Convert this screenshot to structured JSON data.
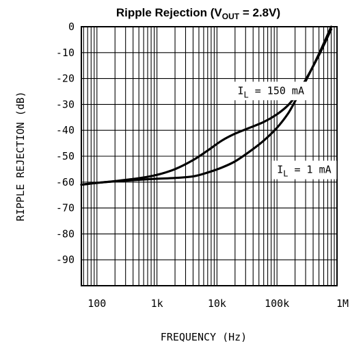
{
  "chart_data": {
    "type": "line",
    "title": {
      "main": "Ripple Rejection (V",
      "subscript": "OUT",
      "suffix": " = 2.8V)"
    },
    "xlabel": "FREQUENCY (Hz)",
    "ylabel": "RIPPLE REJECTION (dB)",
    "x_scale": "log",
    "xlim": [
      55,
      1000000
    ],
    "ylim": [
      -100,
      0
    ],
    "x_ticks": [
      {
        "value": 100,
        "label": "100"
      },
      {
        "value": 1000,
        "label": "1k"
      },
      {
        "value": 10000,
        "label": "10k"
      },
      {
        "value": 100000,
        "label": "100k"
      },
      {
        "value": 1000000,
        "label": "1M"
      }
    ],
    "y_ticks": [
      {
        "value": 0,
        "label": "0"
      },
      {
        "value": -10,
        "label": "-10"
      },
      {
        "value": -20,
        "label": "-20"
      },
      {
        "value": -30,
        "label": "-30"
      },
      {
        "value": -40,
        "label": "-40"
      },
      {
        "value": -50,
        "label": "-50"
      },
      {
        "value": -60,
        "label": "-60"
      },
      {
        "value": -70,
        "label": "-70"
      },
      {
        "value": -80,
        "label": "-80"
      },
      {
        "value": -90,
        "label": "-90"
      }
    ],
    "grid": true,
    "series": [
      {
        "name": "I_L = 150 mA",
        "label": {
          "prefix": "I",
          "sub": "L",
          "suffix": " = 150 mA"
        },
        "label_at": {
          "x": 22000,
          "y": -26
        },
        "x": [
          55,
          100,
          200,
          500,
          1000,
          2000,
          4000,
          7000,
          12000,
          20000,
          35000,
          60000,
          100000,
          150000,
          200000,
          300000,
          500000,
          800000
        ],
        "y": [
          -61,
          -60.3,
          -59.6,
          -58.5,
          -57.2,
          -55,
          -51.5,
          -47.8,
          -44,
          -41.3,
          -39,
          -36.8,
          -33.8,
          -30.5,
          -27,
          -20.5,
          -11,
          -1
        ]
      },
      {
        "name": "I_L = 1 mA",
        "label": {
          "prefix": "I",
          "sub": "L",
          "suffix": " = 1 mA"
        },
        "label_at": {
          "x": 100000,
          "y": -56.5
        },
        "x": [
          55,
          100,
          200,
          500,
          1000,
          2000,
          4000,
          7000,
          12000,
          20000,
          35000,
          60000,
          100000,
          150000,
          200000,
          300000,
          500000,
          800000
        ],
        "y": [
          -61,
          -60.3,
          -59.7,
          -59.1,
          -58.7,
          -58.4,
          -57.8,
          -56.3,
          -54.4,
          -52,
          -48.2,
          -44,
          -39,
          -33.8,
          -28.8,
          -21,
          -10.5,
          0
        ]
      }
    ]
  }
}
